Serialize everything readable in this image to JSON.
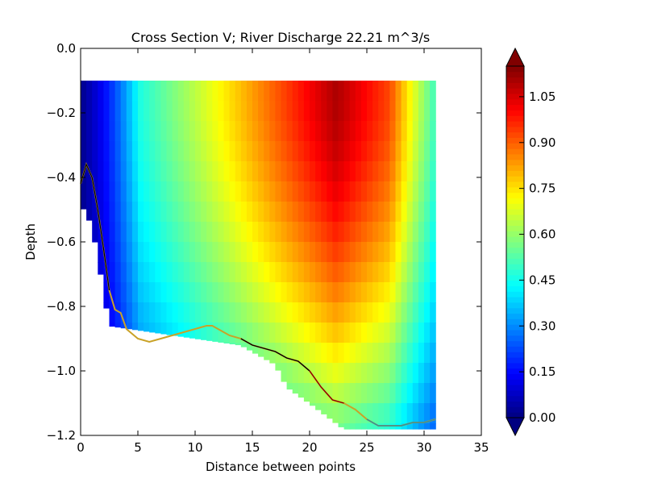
{
  "chart_data": {
    "type": "heatmap",
    "title": "Cross Section V; River Discharge 22.21 m^3/s",
    "xlabel": "Distance between points",
    "ylabel": "Depth",
    "xlim": [
      0,
      35
    ],
    "ylim": [
      -1.2,
      0.0
    ],
    "x_ticks": [
      "0",
      "5",
      "10",
      "15",
      "20",
      "25",
      "30",
      "35"
    ],
    "y_ticks": [
      "0.0",
      "−0.2",
      "−0.4",
      "−0.6",
      "−0.8",
      "−1.0",
      "−1.2"
    ],
    "grid": false,
    "cell_width": 0.5,
    "cell_height": 0.0625,
    "data_top_depth": -0.1,
    "colormap": "jet",
    "colorbar": {
      "min": 0.0,
      "max": 1.15,
      "ticks": [
        "0.00",
        "0.15",
        "0.30",
        "0.45",
        "0.60",
        "0.75",
        "0.90",
        "1.05"
      ],
      "extend": "both"
    },
    "column_bottoms": [
      [
        0,
        -0.48
      ],
      [
        1,
        -0.55
      ],
      [
        2,
        -0.75
      ],
      [
        2.5,
        -0.86
      ],
      [
        14,
        -0.92
      ],
      [
        17,
        -0.98
      ],
      [
        18,
        -1.05
      ],
      [
        20,
        -1.1
      ],
      [
        23,
        -1.18
      ],
      [
        31,
        -1.18
      ]
    ],
    "bed_profile": {
      "x": [
        0,
        0.5,
        1,
        1.5,
        2,
        2.5,
        3,
        3.5,
        4,
        5,
        6,
        7,
        8,
        9,
        10,
        11,
        11.5,
        12,
        13,
        14,
        15,
        16,
        17,
        18,
        19,
        20,
        21,
        22,
        23,
        24,
        25,
        26,
        27,
        28,
        29,
        30,
        31
      ],
      "y": [
        -0.42,
        -0.36,
        -0.4,
        -0.5,
        -0.62,
        -0.75,
        -0.81,
        -0.82,
        -0.87,
        -0.9,
        -0.91,
        -0.9,
        -0.89,
        -0.88,
        -0.87,
        -0.86,
        -0.86,
        -0.87,
        -0.89,
        -0.9,
        -0.92,
        -0.93,
        -0.94,
        -0.96,
        -0.97,
        -1.0,
        -1.05,
        -1.09,
        -1.1,
        -1.12,
        -1.15,
        -1.17,
        -1.17,
        -1.17,
        -1.16,
        -1.16,
        -1.15
      ]
    },
    "bed_colors": [
      "#c9a227",
      "#000000",
      "#8b0000",
      "#2f8fa3"
    ]
  }
}
